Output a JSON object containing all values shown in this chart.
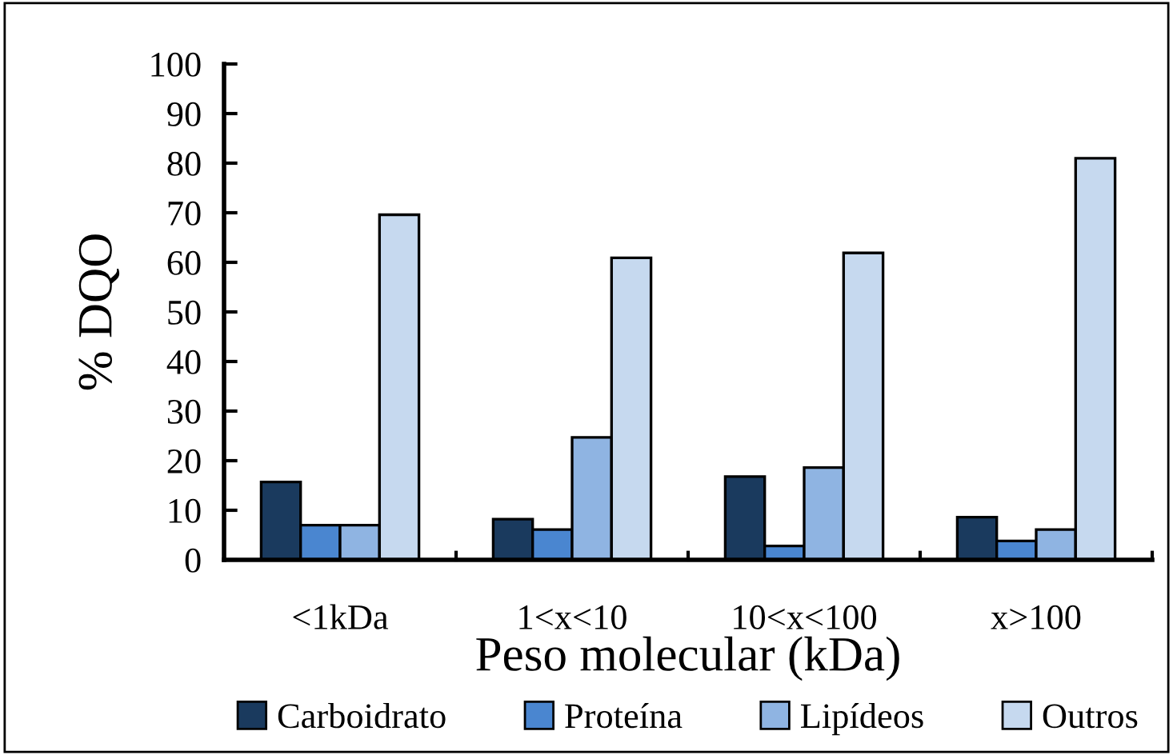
{
  "chart_data": {
    "type": "bar",
    "ylabel": "% DQO",
    "xlabel": "Peso molecular (kDa)",
    "categories": [
      "<1kDa",
      "1<x<10",
      "10<x<100",
      "x>100"
    ],
    "series": [
      {
        "name": "Carboidrato",
        "color": "#1a3a5e",
        "values": [
          15.7,
          8.2,
          16.8,
          8.6
        ]
      },
      {
        "name": "Proteína",
        "color": "#4a86d0",
        "values": [
          7.0,
          6.1,
          2.8,
          3.8
        ]
      },
      {
        "name": "Lipídeos",
        "color": "#8fb4e2",
        "values": [
          7.0,
          24.7,
          18.6,
          6.1
        ]
      },
      {
        "name": "Outros",
        "color": "#c6d9ef",
        "values": [
          69.6,
          60.9,
          61.9,
          81.0
        ]
      }
    ],
    "ylim": [
      0,
      100
    ],
    "yticks": [
      0,
      10,
      20,
      30,
      40,
      50,
      60,
      70,
      80,
      90,
      100
    ],
    "grid": false,
    "legend": "bottom"
  }
}
